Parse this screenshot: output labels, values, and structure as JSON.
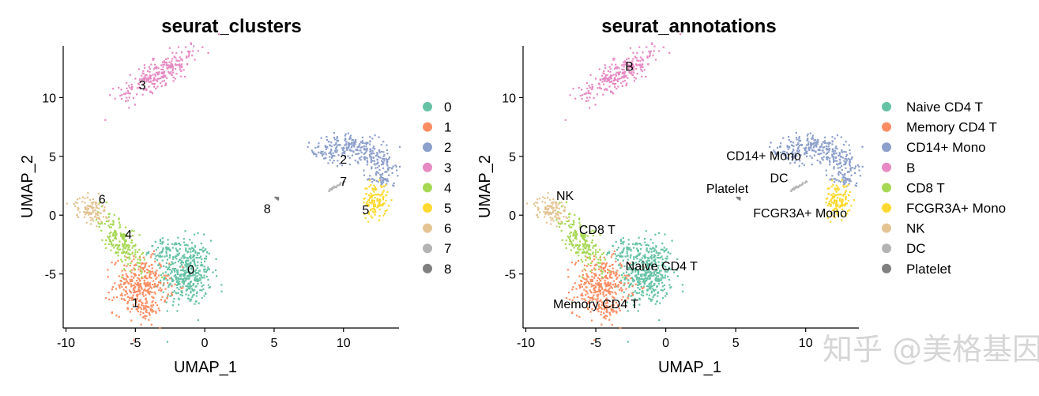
{
  "chart_data": [
    {
      "type": "scatter",
      "title": "seurat_clusters",
      "xlabel": "UMAP_1",
      "ylabel": "UMAP_2",
      "xlim": [
        -10.2,
        14.0
      ],
      "ylim": [
        -9.6,
        14.4
      ],
      "xticks": [
        "-10",
        "-5",
        "0",
        "5",
        "10"
      ],
      "yticks": [
        "-5",
        "0",
        "5",
        "10"
      ],
      "grid": false,
      "legend": "right",
      "groups": [
        {
          "name": "0",
          "color": "#66C2A5",
          "label_pos": [
            -1.0,
            -4.6
          ]
        },
        {
          "name": "1",
          "color": "#FC8D62",
          "label_pos": [
            -5.0,
            -7.4
          ]
        },
        {
          "name": "2",
          "color": "#8DA0CB",
          "label_pos": [
            10.0,
            4.8
          ]
        },
        {
          "name": "3",
          "color": "#E78AC3",
          "label_pos": [
            -4.5,
            11.1
          ]
        },
        {
          "name": "4",
          "color": "#A6D854",
          "label_pos": [
            -5.5,
            -1.6
          ]
        },
        {
          "name": "5",
          "color": "#FFD92F",
          "label_pos": [
            11.6,
            0.5
          ]
        },
        {
          "name": "6",
          "color": "#E5C494",
          "label_pos": [
            -7.4,
            1.4
          ]
        },
        {
          "name": "7",
          "color": "#B3B3B3",
          "label_pos": [
            10.0,
            2.9
          ]
        },
        {
          "name": "8",
          "color": "#7F7F7F",
          "label_pos": [
            4.5,
            0.6
          ]
        }
      ]
    },
    {
      "type": "scatter",
      "title": "seurat_annotations",
      "xlabel": "UMAP_1",
      "ylabel": "UMAP_2",
      "xlim": [
        -10.2,
        13.8
      ],
      "ylim": [
        -9.6,
        14.4
      ],
      "xticks": [
        "-10",
        "-5",
        "0",
        "5",
        "10"
      ],
      "yticks": [
        "-5",
        "0",
        "5",
        "10"
      ],
      "grid": false,
      "legend": "right",
      "groups": [
        {
          "name": "Naive CD4 T",
          "color": "#66C2A5",
          "label_pos": [
            -0.3,
            -4.3
          ]
        },
        {
          "name": "Memory CD4 T",
          "color": "#FC8D62",
          "label_pos": [
            -5.0,
            -7.5
          ]
        },
        {
          "name": "CD14+ Mono",
          "color": "#8DA0CB",
          "label_pos": [
            7.0,
            5.1
          ]
        },
        {
          "name": "B",
          "color": "#E78AC3",
          "label_pos": [
            -2.6,
            12.7
          ]
        },
        {
          "name": "CD8 T",
          "color": "#A6D854",
          "label_pos": [
            -4.9,
            -1.2
          ]
        },
        {
          "name": "FCGR3A+ Mono",
          "color": "#FFD92F",
          "label_pos": [
            9.6,
            0.2
          ]
        },
        {
          "name": "NK",
          "color": "#E5C494",
          "label_pos": [
            -7.2,
            1.7
          ]
        },
        {
          "name": "DC",
          "color": "#B3B3B3",
          "label_pos": [
            8.1,
            3.2
          ]
        },
        {
          "name": "Platelet",
          "color": "#7F7F7F",
          "label_pos": [
            4.4,
            2.3
          ]
        }
      ]
    }
  ],
  "clusters": [
    {
      "blobs": [
        [
          -1.3,
          -4.9,
          0.9,
          1.4,
          0,
          420
        ],
        [
          -2.8,
          -3.0,
          0.6,
          0.5,
          0,
          60
        ]
      ]
    },
    {
      "blobs": [
        [
          -4.6,
          -6.0,
          1.0,
          1.2,
          0,
          330
        ],
        [
          -4.3,
          -8.0,
          0.5,
          0.5,
          0,
          40
        ]
      ]
    },
    {
      "arc": [
        10.3,
        3.4,
        2.6,
        145,
        -20,
        0.6,
        360
      ]
    },
    {
      "blobs": [
        [
          -3.3,
          12.1,
          1.7,
          0.5,
          35,
          260
        ]
      ]
    },
    {
      "blobs": [
        [
          -6.0,
          -2.3,
          0.5,
          1.4,
          30,
          200
        ]
      ]
    },
    {
      "blobs": [
        [
          12.3,
          1.3,
          0.45,
          0.7,
          0,
          130
        ]
      ]
    },
    {
      "blobs": [
        [
          -8.2,
          0.5,
          0.6,
          0.5,
          -20,
          110
        ]
      ]
    },
    {
      "blobs": [
        [
          9.4,
          2.4,
          0.5,
          0.06,
          35,
          25
        ]
      ]
    },
    {
      "blobs": [
        [
          5.25,
          1.45,
          0.08,
          0.1,
          0,
          10
        ]
      ]
    }
  ],
  "watermark": "知乎 @美格基因"
}
